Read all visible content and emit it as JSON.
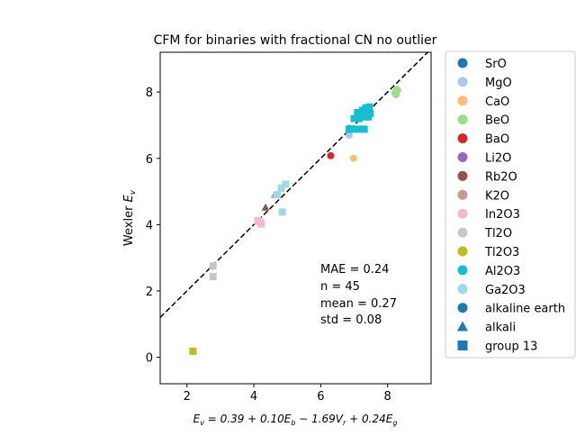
{
  "chart_data": {
    "type": "scatter",
    "title": "CFM for binaries with fractional CN no outlier",
    "xlabel_prefix": "E",
    "xlabel_sub": "v",
    "xlabel_rest": " = 0.39 + 0.10E",
    "xlabel_b": "b",
    "xlabel_mid": " − 1.69V",
    "xlabel_r": "r",
    "xlabel_end": " + 0.24E",
    "xlabel_g": "g",
    "ylabel_prefix": "Wexler ",
    "ylabel_e": "E",
    "ylabel_sub": "v",
    "xlim": [
      1.2,
      9.3
    ],
    "ylim": [
      -0.8,
      9.2
    ],
    "xticks": [
      2,
      4,
      6,
      8
    ],
    "yticks": [
      0,
      2,
      4,
      6,
      8
    ],
    "grid": false,
    "legend_position": "outside-right",
    "reference_line": {
      "style": "dashed",
      "color": "#000000",
      "slope": 1,
      "intercept": 0
    },
    "stats": [
      "MAE = 0.24",
      "n = 45",
      "mean = 0.27",
      "std = 0.08"
    ],
    "series": [
      {
        "name": "SrO",
        "color": "#1f77b4",
        "marker": "circle",
        "points": [
          [
            6.85,
            6.9
          ]
        ]
      },
      {
        "name": "MgO",
        "color": "#aec7e8",
        "marker": "circle",
        "points": [
          [
            6.85,
            6.7
          ]
        ]
      },
      {
        "name": "CaO",
        "color": "#ffbb78",
        "marker": "circle",
        "points": [
          [
            6.98,
            6.0
          ]
        ]
      },
      {
        "name": "BeO",
        "color": "#98df8a",
        "marker": "circle",
        "points": [
          [
            8.22,
            7.98
          ],
          [
            8.27,
            8.08
          ],
          [
            8.25,
            7.92
          ],
          [
            8.3,
            8.05
          ]
        ]
      },
      {
        "name": "BaO",
        "color": "#d62728",
        "marker": "circle",
        "points": [
          [
            6.3,
            6.08
          ]
        ]
      },
      {
        "name": "Li2O",
        "color": "#9467bd",
        "marker": "triangle",
        "points": []
      },
      {
        "name": "Rb2O",
        "color": "#8c564b",
        "marker": "triangle",
        "points": [
          [
            4.35,
            4.52
          ]
        ]
      },
      {
        "name": "K2O",
        "color": "#c49c94",
        "marker": "triangle",
        "points": [
          [
            4.62,
            4.9
          ]
        ]
      },
      {
        "name": "In2O3",
        "color": "#f7b6d2",
        "marker": "square",
        "points": [
          [
            4.12,
            4.12
          ],
          [
            4.22,
            4.02
          ],
          [
            4.18,
            4.08
          ]
        ]
      },
      {
        "name": "Tl2O",
        "color": "#c7c7c7",
        "marker": "square",
        "points": [
          [
            2.78,
            2.75
          ],
          [
            2.78,
            2.43
          ]
        ]
      },
      {
        "name": "Tl2O3",
        "color": "#bcbd22",
        "marker": "square",
        "points": [
          [
            2.18,
            0.18
          ]
        ]
      },
      {
        "name": "Al2O3",
        "color": "#17becf",
        "marker": "square",
        "points": [
          [
            6.85,
            6.88
          ],
          [
            7.0,
            6.88
          ],
          [
            7.15,
            6.88
          ],
          [
            7.3,
            6.88
          ],
          [
            7.0,
            7.2
          ],
          [
            7.15,
            7.2
          ],
          [
            7.3,
            7.25
          ],
          [
            7.42,
            7.25
          ],
          [
            7.1,
            7.38
          ],
          [
            7.25,
            7.45
          ],
          [
            7.35,
            7.52
          ],
          [
            7.45,
            7.55
          ],
          [
            7.48,
            7.35
          ],
          [
            7.2,
            7.3
          ],
          [
            7.3,
            7.4
          ]
        ]
      },
      {
        "name": "Ga2O3",
        "color": "#9edae5",
        "marker": "square",
        "points": [
          [
            4.85,
            4.38
          ],
          [
            4.7,
            4.9
          ],
          [
            4.82,
            5.1
          ],
          [
            4.95,
            5.22
          ]
        ]
      }
    ],
    "legend_extra": [
      {
        "name": "alkaline earth",
        "color": "#1f77b4",
        "marker": "circle"
      },
      {
        "name": "alkali",
        "color": "#1f77b4",
        "marker": "triangle"
      },
      {
        "name": "group 13",
        "color": "#1f77b4",
        "marker": "square"
      }
    ]
  }
}
